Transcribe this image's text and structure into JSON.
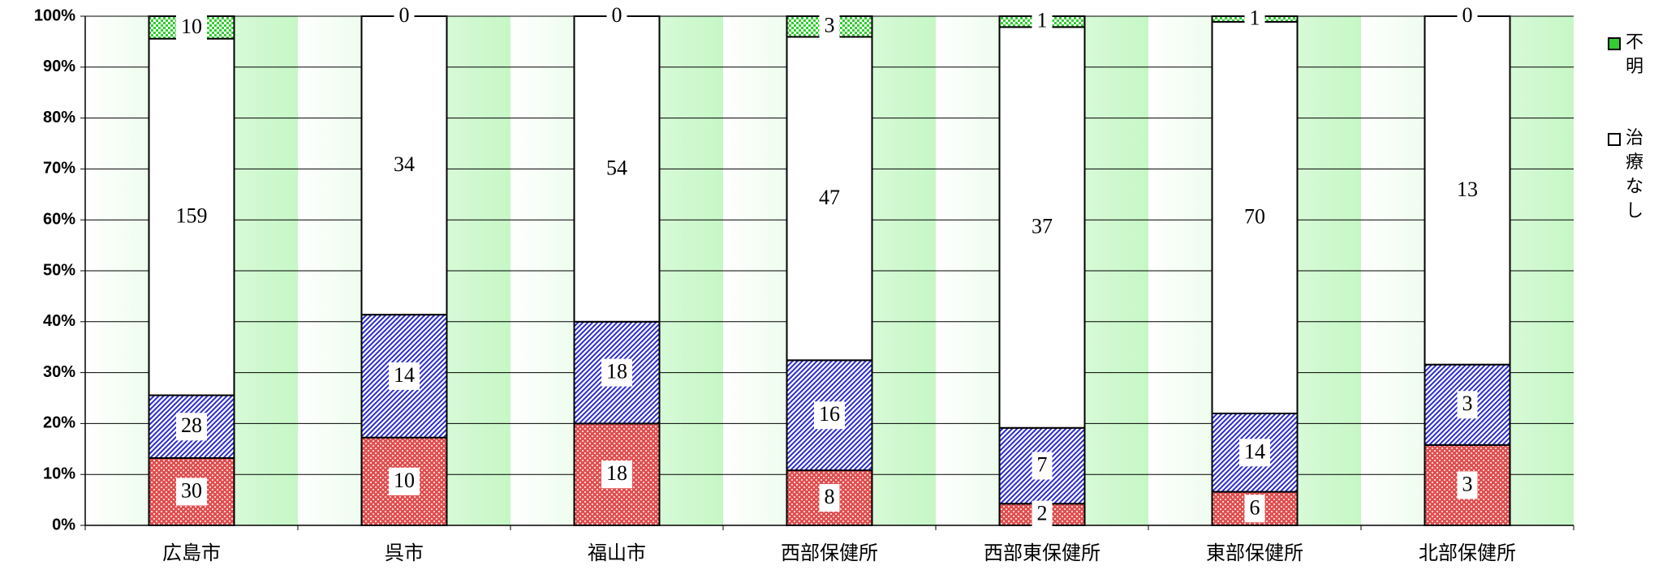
{
  "chart_data": {
    "type": "bar",
    "stack": "percent",
    "categories": [
      "広島市",
      "呉市",
      "福山市",
      "西部保健所",
      "西部東保健所",
      "東部保健所",
      "北部保健所"
    ],
    "series": [
      {
        "color": "#e05050",
        "values": [
          30,
          10,
          18,
          8,
          2,
          6,
          3
        ]
      },
      {
        "color": "#2a2ad0",
        "values": [
          28,
          14,
          18,
          16,
          7,
          14,
          3
        ]
      },
      {
        "name": "治療なし",
        "color": "#ffffff",
        "values": [
          159,
          34,
          54,
          47,
          37,
          70,
          13
        ]
      },
      {
        "name": "不明",
        "color": "#33cc33",
        "values": [
          10,
          0,
          0,
          3,
          1,
          1,
          0
        ]
      }
    ],
    "ylim": [
      0,
      100
    ],
    "yticks": [
      {
        "value": 0,
        "label": "0%"
      },
      {
        "value": 10,
        "label": "10%"
      },
      {
        "value": 20,
        "label": "20%"
      },
      {
        "value": 30,
        "label": "30%"
      },
      {
        "value": 40,
        "label": "40%"
      },
      {
        "value": 50,
        "label": "50%"
      },
      {
        "value": 60,
        "label": "60%"
      },
      {
        "value": 70,
        "label": "70%"
      },
      {
        "value": 80,
        "label": "80%"
      },
      {
        "value": 90,
        "label": "90%"
      },
      {
        "value": 100,
        "label": "100%"
      }
    ],
    "grid": true
  }
}
